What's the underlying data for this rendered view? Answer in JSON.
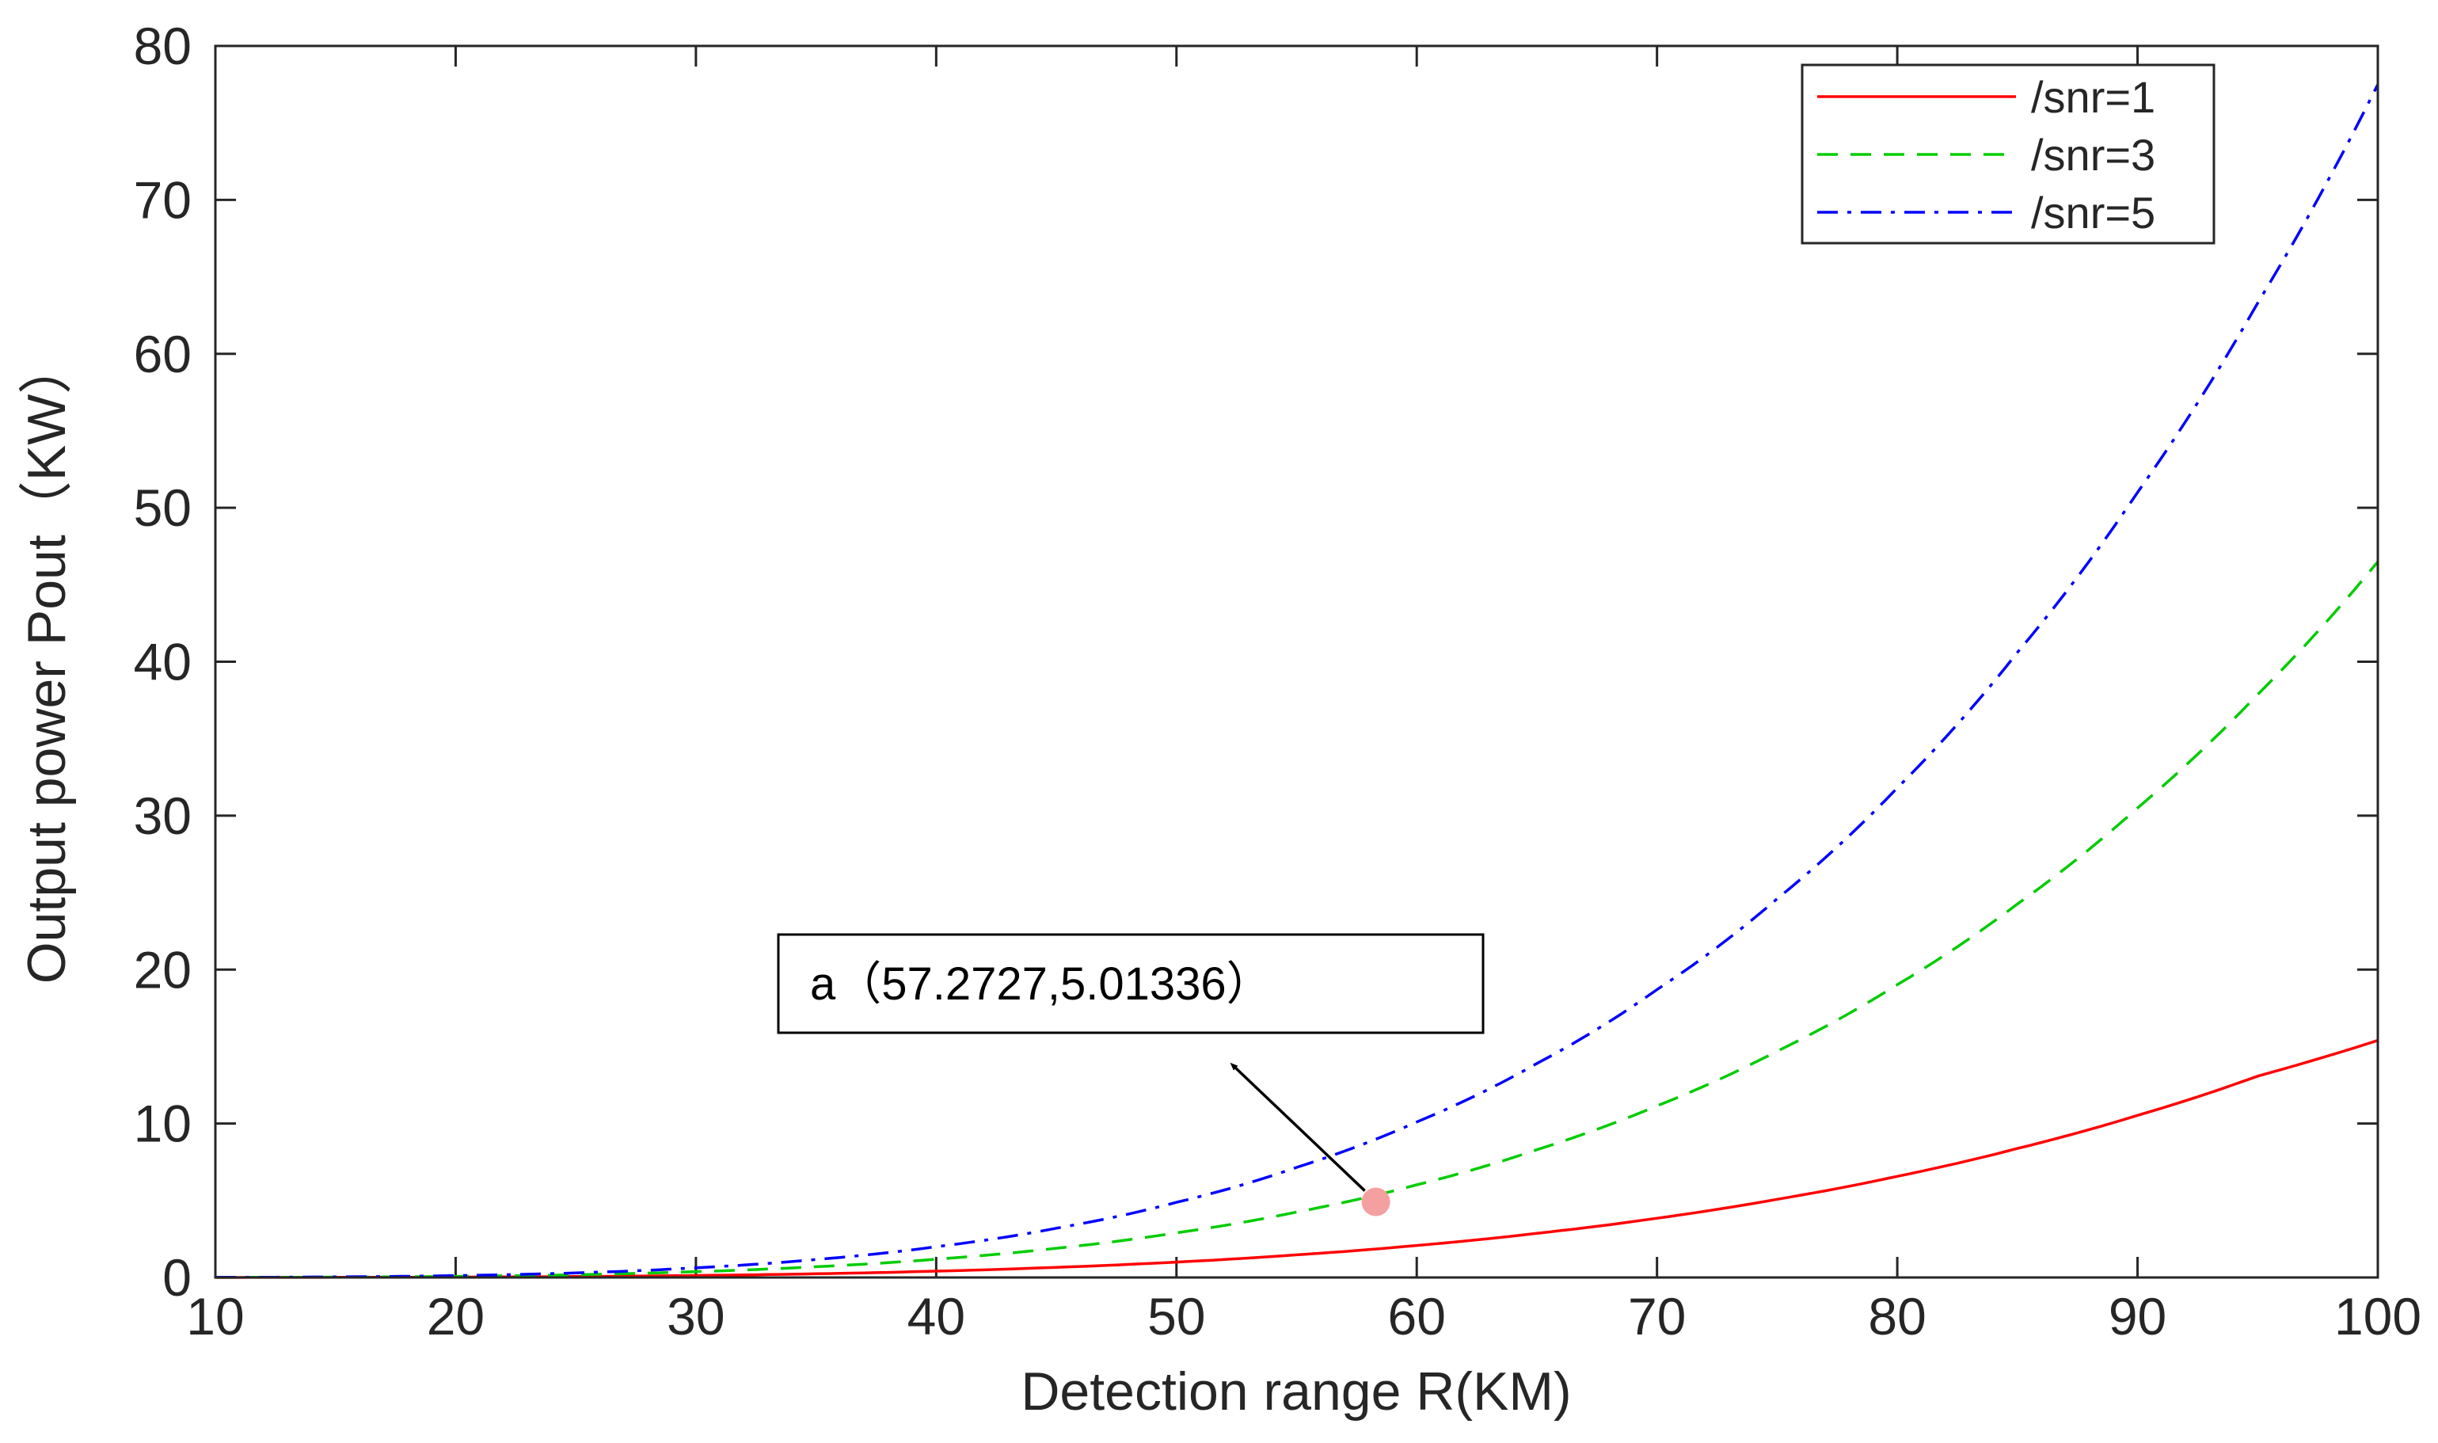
{
  "chart_data": {
    "type": "line",
    "title": "",
    "xlabel": "Detection range R(KM)",
    "ylabel": "Output power Pout（KW）",
    "xlim": [
      10,
      100
    ],
    "ylim": [
      0,
      80
    ],
    "xticks": [
      10,
      20,
      30,
      40,
      50,
      60,
      70,
      80,
      90,
      100
    ],
    "yticks": [
      0,
      10,
      20,
      30,
      40,
      50,
      60,
      70,
      80
    ],
    "grid": false,
    "legend_position": "top-right",
    "x": [
      10,
      15,
      20,
      25,
      30,
      35,
      40,
      45,
      50,
      55,
      60,
      65,
      70,
      75,
      80,
      85,
      90,
      95,
      100
    ],
    "series": [
      {
        "name": "/snr=1",
        "color": "#ff0000",
        "style": "solid",
        "values": [
          0.0016,
          0.008,
          0.025,
          0.06,
          0.13,
          0.24,
          0.41,
          0.66,
          1.0,
          1.47,
          2.08,
          2.87,
          3.85,
          5.08,
          6.57,
          8.38,
          10.53,
          13.08,
          15.4
        ]
      },
      {
        "name": "/snr=3",
        "color": "#00cc00",
        "style": "dashed",
        "values": [
          0.005,
          0.024,
          0.074,
          0.18,
          0.38,
          0.7,
          1.19,
          1.9,
          2.9,
          4.25,
          6.02,
          8.3,
          11.15,
          14.7,
          19.02,
          24.26,
          30.5,
          37.87,
          46.5
        ]
      },
      {
        "name": "/snr=5",
        "color": "#0000ff",
        "style": "dashdot",
        "values": [
          0.008,
          0.039,
          0.124,
          0.3,
          0.63,
          1.17,
          2.0,
          3.2,
          4.88,
          7.15,
          10.1,
          13.9,
          18.7,
          24.6,
          31.8,
          40.6,
          51.0,
          63.3,
          77.5
        ]
      }
    ],
    "annotations": [
      {
        "label": "a（57.2727,5.01336）",
        "point_x": 57.2727,
        "point_y": 5.01336,
        "marker_color": "#f4a0a0",
        "arrow": true
      }
    ]
  }
}
